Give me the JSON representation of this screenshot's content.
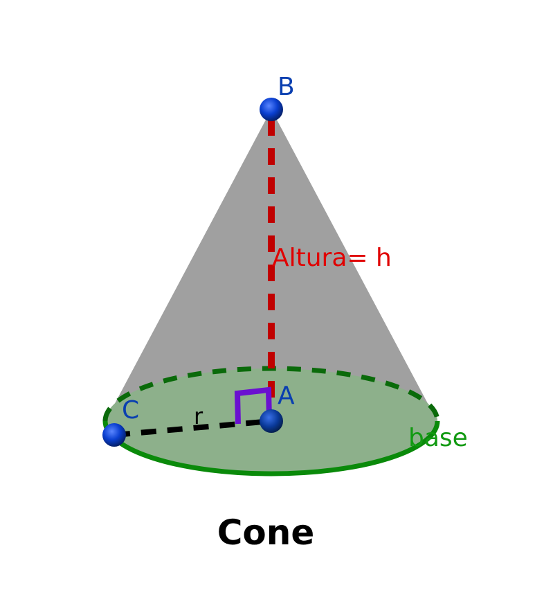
{
  "diagram": {
    "title": "Cone",
    "labels": {
      "apex": "B",
      "center": "A",
      "rim_point": "C",
      "height": "Altura= h",
      "radius": "r",
      "base": "base"
    },
    "colors": {
      "cone_surface": "#a0a0a0",
      "base_fill": "#8db08b",
      "base_edge": "#0a8a0a",
      "height_line": "#c00000",
      "radius_line": "#000000",
      "points": "#0a3fd0",
      "point_labels": "#0a3fb0",
      "height_label": "#e00000",
      "base_label": "#129a12",
      "right_angle": "#6a10d0",
      "title": "#000000"
    }
  }
}
